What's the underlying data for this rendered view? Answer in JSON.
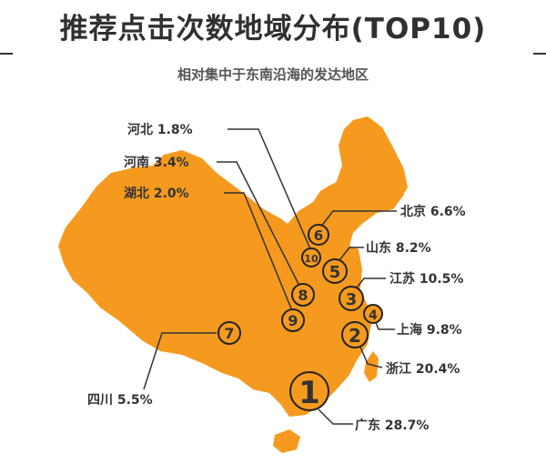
{
  "title": "推荐点击次数地域分布(TOP10)",
  "subtitle": "相对集中于东南沿海的发达地区",
  "colors": {
    "map_fill": "#F59A1E",
    "text": "#333333",
    "line": "#333333"
  },
  "regions": [
    {
      "rank": "1",
      "name": "广东",
      "value": "28.7%"
    },
    {
      "rank": "2",
      "name": "浙江",
      "value": "20.4%"
    },
    {
      "rank": "3",
      "name": "江苏",
      "value": "10.5%"
    },
    {
      "rank": "4",
      "name": "上海",
      "value": "9.8%"
    },
    {
      "rank": "5",
      "name": "山东",
      "value": "8.2%"
    },
    {
      "rank": "6",
      "name": "北京",
      "value": "6.6%"
    },
    {
      "rank": "7",
      "name": "四川",
      "value": "5.5%"
    },
    {
      "rank": "8",
      "name": "河南",
      "value": "3.4%"
    },
    {
      "rank": "9",
      "name": "湖北",
      "value": "2.0%"
    },
    {
      "rank": "10",
      "name": "河北",
      "value": "1.8%"
    }
  ]
}
